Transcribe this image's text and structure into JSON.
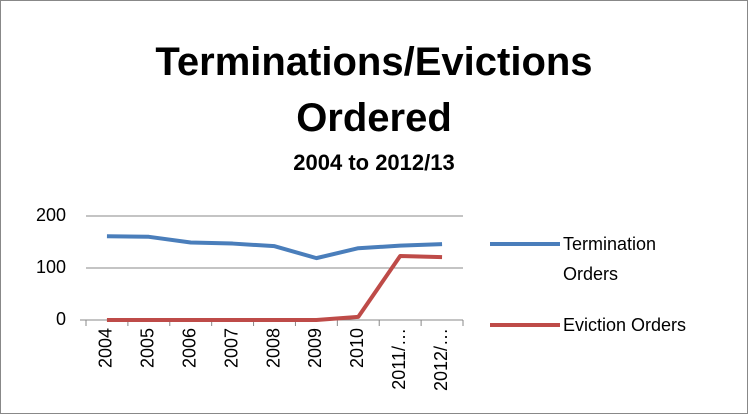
{
  "chart_data": {
    "type": "line",
    "title": "Terminations/Evictions Ordered",
    "subtitle": "2004 to 2012/13",
    "categories": [
      "2004",
      "2005",
      "2006",
      "2007",
      "2008",
      "2009",
      "2010",
      "2011/…",
      "2012/…"
    ],
    "series": [
      {
        "name": "Termination Orders",
        "color": "#4a7ebb",
        "values": [
          161,
          160,
          149,
          147,
          142,
          119,
          138,
          143,
          146
        ]
      },
      {
        "name": "Eviction Orders",
        "color": "#be4b48",
        "values": [
          0,
          0,
          0,
          0,
          0,
          0,
          6,
          123,
          121
        ]
      }
    ],
    "ylim": [
      0,
      200
    ],
    "yticks": [
      0,
      100,
      200
    ],
    "grid": true,
    "legend": "right"
  }
}
